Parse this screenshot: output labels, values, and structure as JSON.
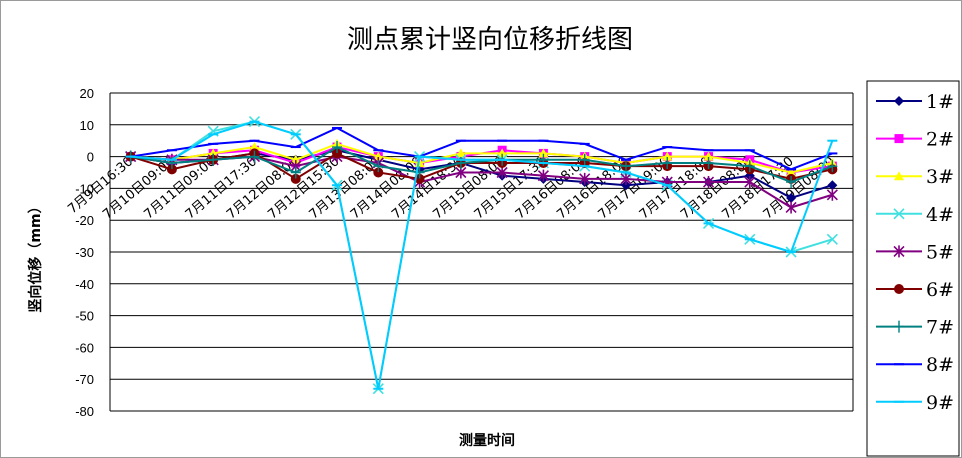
{
  "chart_data": {
    "type": "line",
    "title": "测点累计竖向位移折线图",
    "xlabel": "测量时间",
    "ylabel": "竖向位移（mm）",
    "ylim": [
      -80,
      20
    ],
    "yticks": [
      "20",
      "10",
      "0",
      "-10",
      "-20",
      "-30",
      "-40",
      "-50",
      "-60",
      "-70",
      "-80"
    ],
    "grid": true,
    "legend_position": "right",
    "categories": [
      "7月9日16:30",
      "7月10日09:00",
      "7月11日09:00",
      "7月11日17:30",
      "7月12日08:00",
      "7月12日15:30",
      "7月13日08:00",
      "7月14日08:00",
      "7月14日18:30",
      "7月15日08:00",
      "7月15日17:30",
      "7月16日08:00",
      "7月16日18:00",
      "7月17日09:00",
      "7月17日18:00",
      "7月18日08:00",
      "7月18日17:30",
      "7月19日08:00"
    ],
    "category_count": 18,
    "series": [
      {
        "name": "1#",
        "color": "#000080",
        "marker": "diamond",
        "values": [
          0,
          -2,
          -1,
          1,
          -1,
          2,
          -1,
          -4,
          -2,
          -6,
          -7,
          -8,
          -9,
          -8,
          -8,
          -6,
          -13,
          -9
        ]
      },
      {
        "name": "2#",
        "color": "#ff00ff",
        "marker": "square",
        "values": [
          0,
          -1,
          1,
          2,
          -2,
          3,
          0,
          -2,
          0,
          2,
          1,
          0,
          -2,
          0,
          0,
          -1,
          -5,
          -3
        ]
      },
      {
        "name": "3#",
        "color": "#ffff00",
        "marker": "triangle",
        "values": [
          0,
          -1,
          1,
          3,
          -1,
          4,
          0,
          -2,
          1,
          1,
          1,
          0,
          -2,
          0,
          0,
          -2,
          -5,
          -2
        ]
      },
      {
        "name": "4#",
        "color": "#40e0e0",
        "marker": "x",
        "values": [
          0,
          -1,
          8,
          11,
          7,
          -9,
          -73,
          0,
          -1,
          -1,
          -2,
          -3,
          -5,
          -9,
          -21,
          -26,
          -30,
          -26
        ]
      },
      {
        "name": "5#",
        "color": "#800080",
        "marker": "star",
        "values": [
          0,
          -1,
          -1,
          0,
          -3,
          0,
          -2,
          -8,
          -5,
          -5,
          -6,
          -7,
          -7,
          -8,
          -8,
          -8,
          -16,
          -12
        ]
      },
      {
        "name": "6#",
        "color": "#800000",
        "marker": "circle",
        "values": [
          0,
          -4,
          -1,
          1,
          -7,
          1,
          -5,
          -7,
          -2,
          -2,
          -2,
          -2,
          -3,
          -3,
          -3,
          -4,
          -7,
          -4
        ]
      },
      {
        "name": "7#",
        "color": "#008080",
        "marker": "plus",
        "values": [
          0,
          -2,
          -1,
          0,
          -5,
          3,
          -3,
          -5,
          -2,
          -1,
          -1,
          -1,
          -3,
          -2,
          -2,
          -3,
          -8,
          -3
        ]
      },
      {
        "name": "8#",
        "color": "#0000ff",
        "marker": "dash",
        "values": [
          0,
          2,
          4,
          5,
          3,
          9,
          2,
          0,
          5,
          5,
          5,
          4,
          -1,
          3,
          2,
          2,
          -4,
          1
        ]
      },
      {
        "name": "9#",
        "color": "#00ccff",
        "marker": "dash",
        "values": [
          0,
          -1,
          7,
          11,
          7,
          -9,
          -73,
          0,
          -1,
          -1,
          -2,
          -3,
          -5,
          -9,
          -21,
          -26,
          -30,
          5
        ]
      }
    ]
  }
}
